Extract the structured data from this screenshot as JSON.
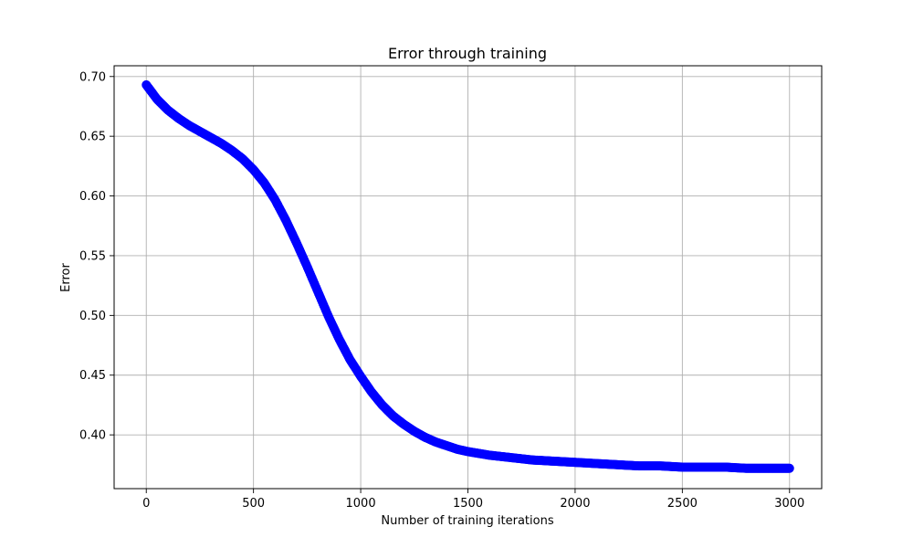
{
  "chart_data": {
    "type": "scatter",
    "title": "Error through training",
    "xlabel": "Number of training iterations",
    "ylabel": "Error",
    "xlim": [
      -150,
      3150
    ],
    "ylim": [
      0.355,
      0.709
    ],
    "xticks": [
      0,
      500,
      1000,
      1500,
      2000,
      2500,
      3000
    ],
    "xtick_labels": [
      "0",
      "500",
      "1000",
      "1500",
      "2000",
      "2500",
      "3000"
    ],
    "yticks": [
      0.4,
      0.45,
      0.5,
      0.55,
      0.6,
      0.65,
      0.7
    ],
    "ytick_labels": [
      "0.40",
      "0.45",
      "0.50",
      "0.55",
      "0.60",
      "0.65",
      "0.70"
    ],
    "grid": true,
    "marker_color": "#0000ff",
    "series": [
      {
        "x": [
          0,
          50,
          100,
          150,
          200,
          250,
          300,
          350,
          400,
          450,
          500,
          550,
          600,
          650,
          700,
          750,
          800,
          850,
          900,
          950,
          1000,
          1050,
          1100,
          1150,
          1200,
          1250,
          1300,
          1350,
          1400,
          1450,
          1500,
          1600,
          1700,
          1800,
          1900,
          2000,
          2100,
          2200,
          2300,
          2400,
          2500,
          2600,
          2700,
          2800,
          2900,
          3000
        ],
        "y": [
          0.693,
          0.681,
          0.672,
          0.665,
          0.659,
          0.654,
          0.649,
          0.644,
          0.638,
          0.631,
          0.622,
          0.611,
          0.597,
          0.58,
          0.561,
          0.541,
          0.52,
          0.499,
          0.48,
          0.463,
          0.449,
          0.436,
          0.425,
          0.416,
          0.409,
          0.403,
          0.398,
          0.394,
          0.391,
          0.388,
          0.386,
          0.383,
          0.381,
          0.379,
          0.378,
          0.377,
          0.376,
          0.375,
          0.374,
          0.374,
          0.373,
          0.373,
          0.373,
          0.372,
          0.372,
          0.372
        ]
      }
    ]
  }
}
